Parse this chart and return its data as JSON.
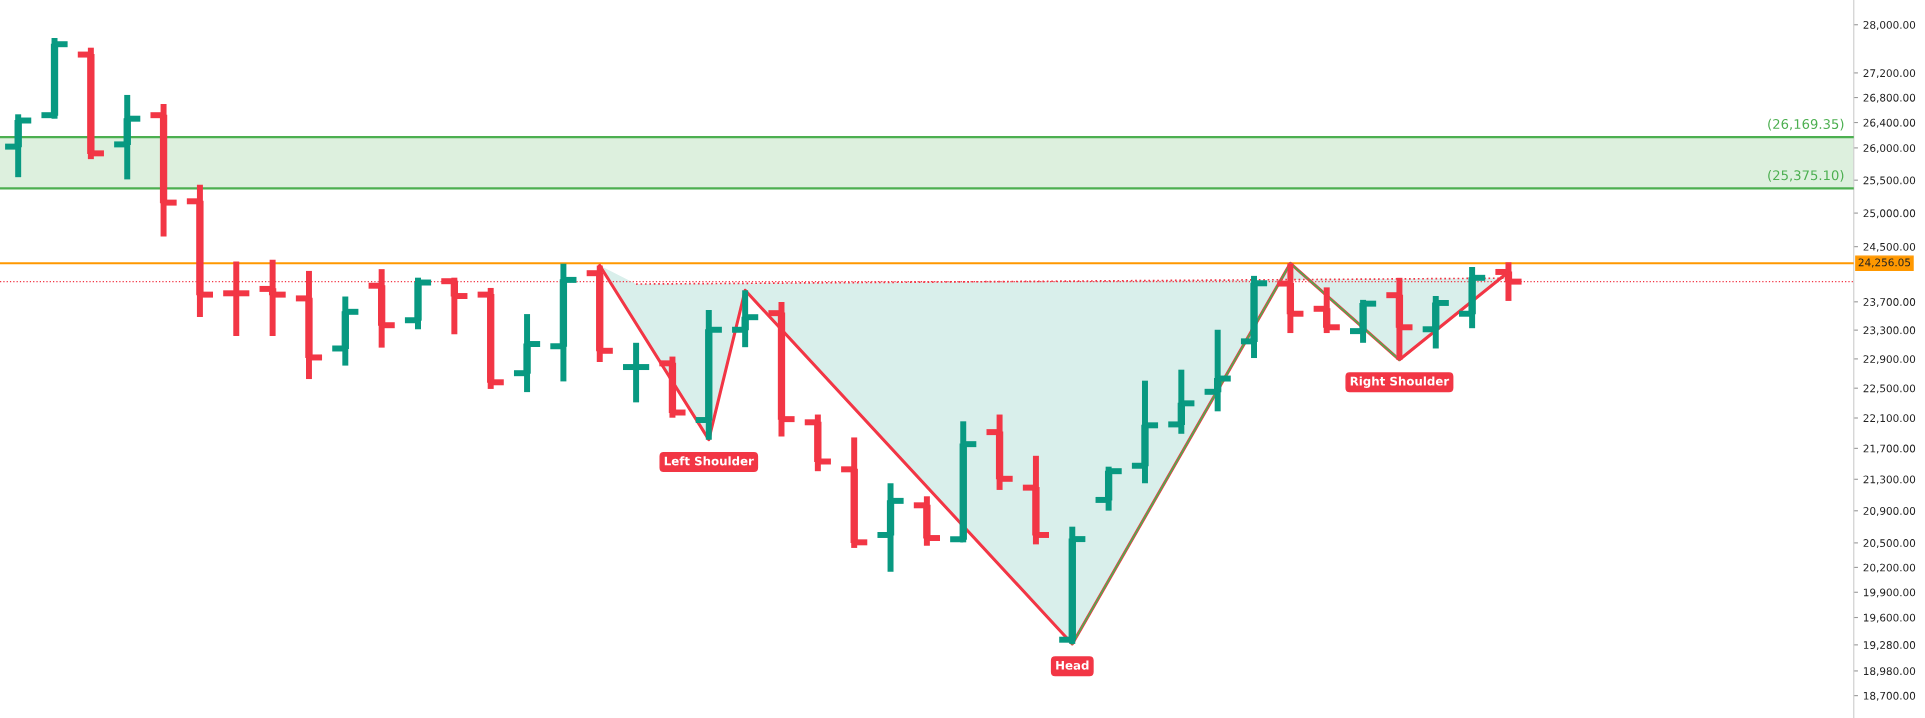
{
  "chart_data": {
    "type": "candlestick",
    "categories": [
      null,
      null,
      null,
      null,
      null,
      null,
      null,
      null,
      null,
      null,
      null,
      null,
      null,
      null,
      null,
      null,
      null,
      null,
      null,
      null,
      null,
      null,
      null,
      null,
      null,
      null,
      null,
      null,
      null,
      null,
      null,
      null,
      null,
      null,
      null,
      null,
      null,
      null,
      null,
      null,
      null,
      null,
      null,
      null,
      null,
      null,
      null,
      null,
      null,
      null,
      null
    ],
    "ohlc": [
      [
        26020,
        26531,
        25546,
        26432
      ],
      [
        26517,
        27778,
        26461,
        27674
      ],
      [
        27502,
        27616,
        25825,
        25915
      ],
      [
        26055,
        26842,
        25512,
        26461
      ],
      [
        26517,
        26696,
        24652,
        25158
      ],
      [
        25178,
        25430,
        23483,
        23803
      ],
      [
        23822,
        24282,
        23218,
        23822
      ],
      [
        23885,
        24308,
        23218,
        23803
      ],
      [
        23749,
        24145,
        22624,
        22920
      ],
      [
        23044,
        23776,
        22808,
        23558
      ],
      [
        23931,
        24171,
        23056,
        23369
      ],
      [
        23439,
        24047,
        23312,
        23977
      ],
      [
        23996,
        24047,
        23242,
        23783
      ],
      [
        23803,
        23899,
        22490,
        22580
      ],
      [
        22704,
        23526,
        22447,
        23106
      ],
      [
        23075,
        24250,
        22592,
        24015
      ],
      [
        24112,
        24223,
        22857,
        23012
      ],
      [
        22788,
        23123,
        22309,
        22788
      ],
      [
        22839,
        22932,
        22104,
        22173
      ],
      [
        22073,
        23584,
        21814,
        23305
      ],
      [
        23305,
        23865,
        23062,
        23482
      ],
      [
        23539,
        23698,
        21855,
        22085
      ],
      [
        22043,
        22146,
        21404,
        21529
      ],
      [
        21428,
        21843,
        20438,
        20507
      ],
      [
        20598,
        21249,
        20147,
        21025
      ],
      [
        20969,
        21083,
        20465,
        20560
      ],
      [
        20545,
        22056,
        20507,
        21755
      ],
      [
        21913,
        22146,
        21164,
        21306
      ],
      [
        21193,
        21603,
        20482,
        20598
      ],
      [
        19340,
        20701,
        19291,
        20547
      ],
      [
        21037,
        21462,
        20902,
        21404
      ],
      [
        21474,
        22602,
        21249,
        22003
      ],
      [
        22015,
        22752,
        21891,
        22296
      ],
      [
        22451,
        23305,
        22189,
        22631
      ],
      [
        23143,
        24073,
        22912,
        23966
      ],
      [
        23962,
        24256,
        23259,
        23531
      ],
      [
        23601,
        23907,
        23259,
        23340
      ],
      [
        23286,
        23728,
        23123,
        23674
      ],
      [
        23795,
        24045,
        22888,
        23340
      ],
      [
        23312,
        23783,
        23044,
        23684
      ],
      [
        23531,
        24202,
        23327,
        24045
      ],
      [
        24130,
        24270,
        23713,
        23990
      ],
      null,
      null,
      null,
      null,
      null,
      null,
      null,
      null,
      null
    ],
    "colors": [
      "#089981",
      "#089981",
      "#f23645",
      "#089981",
      "#f23645",
      "#f23645",
      "#f23645",
      "#f23645",
      "#f23645",
      "#089981",
      "#f23645",
      "#089981",
      "#f23645",
      "#f23645",
      "#089981",
      "#089981",
      "#f23645",
      "#089981",
      "#f23645",
      "#089981",
      "#089981",
      "#f23645",
      "#f23645",
      "#f23645",
      "#089981",
      "#f23645",
      "#089981",
      "#f23645",
      "#f23645",
      "#089981",
      "#089981",
      "#089981",
      "#089981",
      "#089981",
      "#089981",
      "#f23645",
      "#f23645",
      "#089981",
      "#f23645",
      "#089981",
      "#089981",
      "#f23645",
      null,
      null,
      null,
      null,
      null,
      null,
      null,
      null,
      null
    ],
    "series": [
      {
        "type": "line",
        "color": "#f23645",
        "values": [
          null,
          null,
          null,
          null,
          null,
          null,
          null,
          null,
          null,
          null,
          null,
          null,
          null,
          null,
          null,
          null,
          24223,
          null,
          null,
          21814,
          23865,
          null,
          null,
          null,
          null,
          null,
          null,
          null,
          null,
          19291,
          null,
          null,
          null,
          null,
          null,
          24256,
          null,
          null,
          22888,
          null,
          null,
          24130,
          null,
          null,
          null,
          null,
          null,
          null,
          null,
          null,
          null
        ]
      },
      {
        "type": "line",
        "color": "#4caf50",
        "values": [
          null,
          null,
          null,
          null,
          null,
          null,
          null,
          null,
          null,
          null,
          null,
          null,
          null,
          null,
          null,
          null,
          null,
          null,
          null,
          null,
          null,
          null,
          null,
          null,
          null,
          null,
          null,
          null,
          null,
          19291,
          null,
          null,
          null,
          null,
          null,
          24256,
          null,
          null,
          22888,
          null,
          null,
          null,
          null,
          null,
          null,
          null,
          null,
          null,
          null,
          null,
          null
        ]
      },
      {
        "type": "line",
        "color": "#f23645",
        "line_style": "dotted",
        "values": [
          null,
          null,
          null,
          null,
          null,
          null,
          null,
          null,
          null,
          null,
          null,
          null,
          null,
          null,
          null,
          null,
          null,
          23955,
          null,
          null,
          null,
          null,
          null,
          null,
          null,
          null,
          null,
          null,
          null,
          null,
          null,
          null,
          null,
          null,
          null,
          null,
          null,
          null,
          null,
          null,
          null,
          24040,
          null,
          null,
          null,
          null,
          null,
          null,
          null,
          null,
          null
        ]
      }
    ],
    "log": true,
    "ylim": [
      18450,
      28420
    ],
    "yticks": [
      {
        "value": 28000,
        "label": "28,000.00"
      },
      {
        "value": 27200,
        "label": "27,200.00"
      },
      {
        "value": 26800,
        "label": "26,800.00"
      },
      {
        "value": 26400,
        "label": "26,400.00"
      },
      {
        "value": 26000,
        "label": "26,000.00"
      },
      {
        "value": 25500,
        "label": "25,500.00"
      },
      {
        "value": 25000,
        "label": "25,000.00"
      },
      {
        "value": 24500,
        "label": "24,500.00"
      },
      {
        "value": 23700,
        "label": "23,700.00"
      },
      {
        "value": 23300,
        "label": "23,300.00"
      },
      {
        "value": 22900,
        "label": "22,900.00"
      },
      {
        "value": 22500,
        "label": "22,500.00"
      },
      {
        "value": 22100,
        "label": "22,100.00"
      },
      {
        "value": 21700,
        "label": "21,700.00"
      },
      {
        "value": 21300,
        "label": "21,300.00"
      },
      {
        "value": 20900,
        "label": "20,900.00"
      },
      {
        "value": 20500,
        "label": "20,500.00"
      },
      {
        "value": 20200,
        "label": "20,200.00"
      },
      {
        "value": 19900,
        "label": "19,900.00"
      },
      {
        "value": 19600,
        "label": "19,600.00"
      },
      {
        "value": 19280,
        "label": "19,280.00"
      },
      {
        "value": 18980,
        "label": "18,980.00"
      },
      {
        "value": 18700,
        "label": "18,700.00"
      }
    ],
    "tick_labels": "y",
    "grid": false,
    "bands": [
      {
        "axis": "y",
        "from": 25375.1,
        "to": 26169.35,
        "color": "#4caf50"
      }
    ],
    "ref_lines": [
      {
        "axis": "y",
        "value": 26169.35,
        "label": "(26,169.35)",
        "color": "#4caf50"
      },
      {
        "axis": "y",
        "value": 25375.1,
        "label": "(25,375.10)",
        "color": "#4caf50"
      },
      {
        "axis": "y",
        "value": 24256.05,
        "label": "24,256.05",
        "color": "#ff9800"
      },
      {
        "axis": "y",
        "value": 23990,
        "color": "#f23645",
        "line_style": "dotted"
      }
    ],
    "annotations": [
      {
        "text": "Left Shoulder",
        "y": 21814
      },
      {
        "text": "Head",
        "y": 19291
      },
      {
        "text": "Right Shoulder",
        "y": 22888
      }
    ]
  }
}
